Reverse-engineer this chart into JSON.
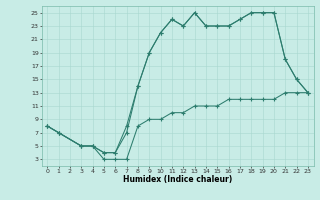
{
  "xlabel": "Humidex (Indice chaleur)",
  "bg_color": "#c8ece6",
  "line_color": "#2d7d6e",
  "grid_color": "#a8d8d0",
  "xlim": [
    -0.5,
    23.5
  ],
  "ylim": [
    2,
    26
  ],
  "xticks": [
    0,
    1,
    2,
    3,
    4,
    5,
    6,
    7,
    8,
    9,
    10,
    11,
    12,
    13,
    14,
    15,
    16,
    17,
    18,
    19,
    20,
    21,
    22,
    23
  ],
  "yticks": [
    3,
    5,
    7,
    9,
    11,
    13,
    15,
    17,
    19,
    21,
    23,
    25
  ],
  "line1_x": [
    0,
    1,
    3,
    4,
    5,
    6,
    7,
    8,
    9,
    10,
    11,
    12,
    13,
    14,
    15,
    16,
    17,
    18,
    19,
    20,
    21,
    22,
    23
  ],
  "line1_y": [
    8,
    7,
    5,
    5,
    4,
    4,
    8,
    14,
    19,
    22,
    24,
    23,
    25,
    23,
    23,
    23,
    24,
    25,
    25,
    25,
    18,
    15,
    13
  ],
  "line2_x": [
    0,
    1,
    3,
    4,
    5,
    6,
    7,
    8,
    9,
    10,
    11,
    12,
    13,
    14,
    15,
    16,
    17,
    18,
    19,
    20,
    21,
    22,
    23
  ],
  "line2_y": [
    8,
    7,
    5,
    5,
    4,
    4,
    7,
    14,
    19,
    22,
    24,
    23,
    25,
    23,
    23,
    23,
    24,
    25,
    25,
    25,
    18,
    15,
    13
  ],
  "line3_x": [
    0,
    1,
    3,
    4,
    5,
    6,
    7,
    8,
    9,
    10,
    11,
    12,
    13,
    14,
    15,
    16,
    17,
    18,
    19,
    20,
    21,
    22,
    23
  ],
  "line3_y": [
    8,
    7,
    5,
    5,
    3,
    3,
    3,
    8,
    9,
    9,
    10,
    10,
    11,
    11,
    11,
    12,
    12,
    12,
    12,
    12,
    13,
    13,
    13
  ]
}
